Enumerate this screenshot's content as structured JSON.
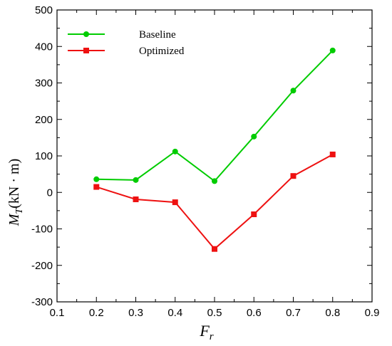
{
  "chart_data": {
    "type": "line",
    "xlabel": {
      "main": "F",
      "sub": "r"
    },
    "ylabel": {
      "main": "M",
      "sub": "T",
      "unit": "(kN · m)"
    },
    "xlim": [
      0.1,
      0.9
    ],
    "ylim": [
      -300,
      500
    ],
    "xticks": [
      "0.1",
      "0.2",
      "0.3",
      "0.4",
      "0.5",
      "0.6",
      "0.7",
      "0.8",
      "0.9"
    ],
    "yticks": [
      "-300",
      "-200",
      "-100",
      "0",
      "100",
      "200",
      "300",
      "400",
      "500"
    ],
    "legend_position": "top-left",
    "grid": false,
    "series": [
      {
        "name": "Baseline",
        "color": "#00cc00",
        "marker": "circle",
        "x": [
          0.2,
          0.3,
          0.4,
          0.5,
          0.6,
          0.7,
          0.8
        ],
        "y": [
          36,
          34,
          112,
          31,
          153,
          279,
          389
        ]
      },
      {
        "name": "Optimized",
        "color": "#ee1111",
        "marker": "square",
        "x": [
          0.2,
          0.3,
          0.4,
          0.5,
          0.6,
          0.7,
          0.8
        ],
        "y": [
          15,
          -19,
          -27,
          -155,
          -60,
          45,
          104
        ]
      }
    ]
  }
}
